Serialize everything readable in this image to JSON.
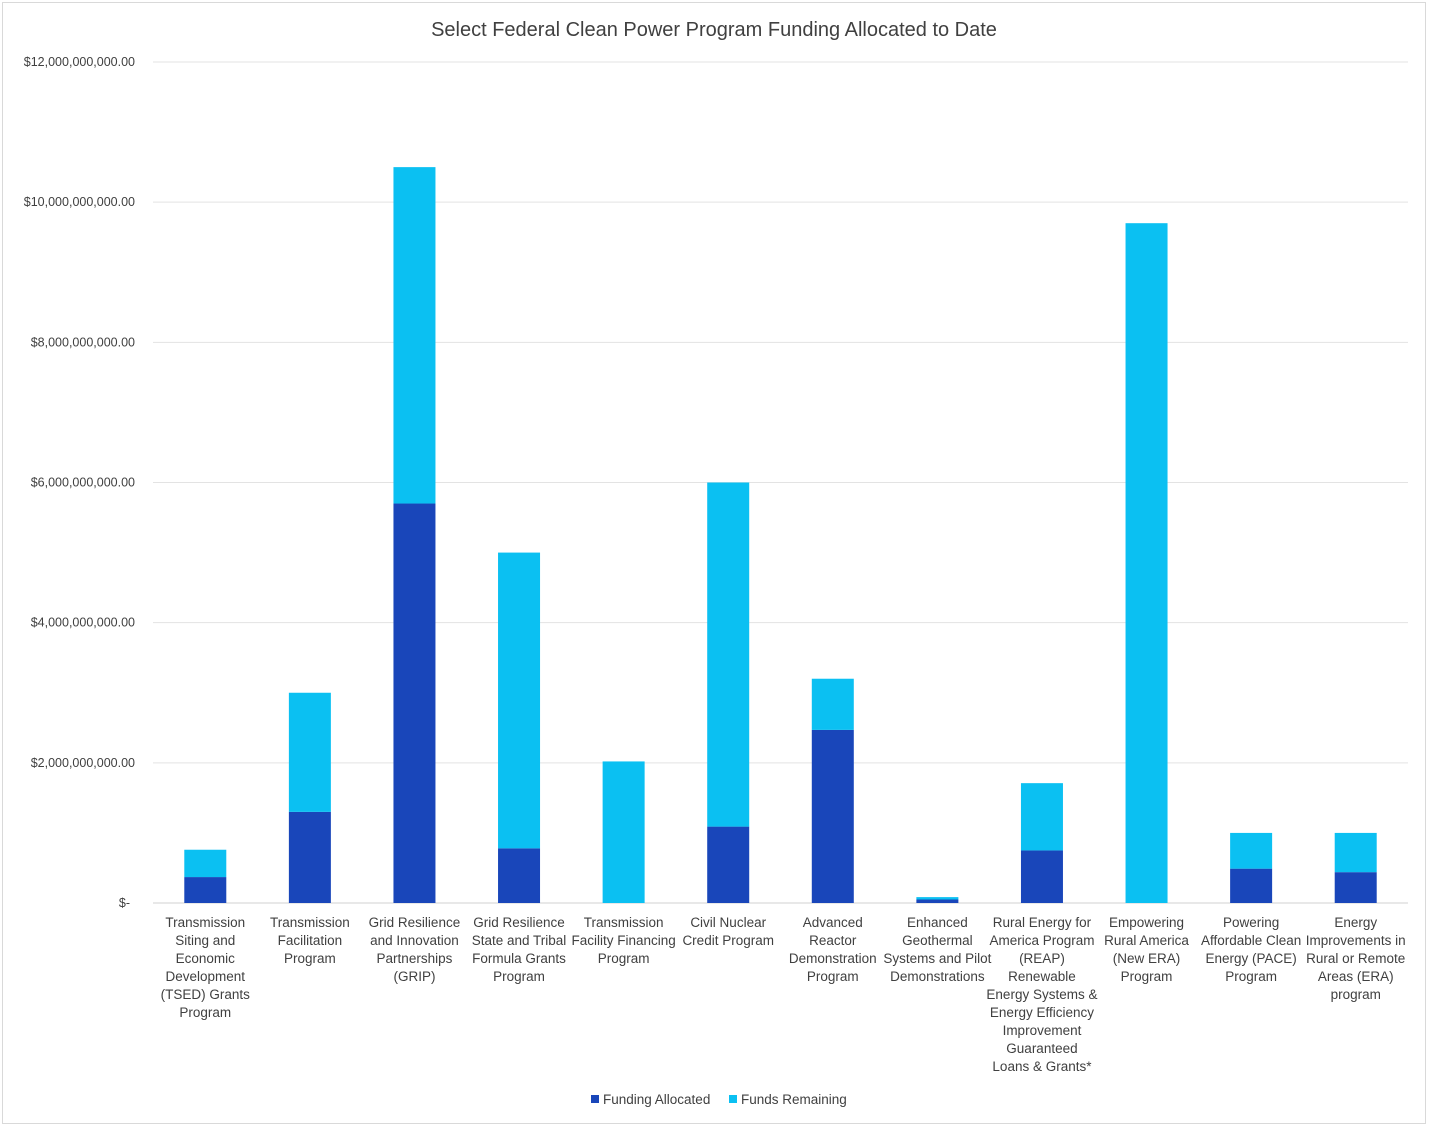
{
  "chart_data": {
    "type": "bar",
    "stacked": true,
    "title": "Select Federal Clean Power Program Funding Allocated to Date",
    "xlabel": "",
    "ylabel": "",
    "ylim": [
      0,
      12000000000
    ],
    "yticks": [
      0,
      2000000000,
      4000000000,
      6000000000,
      8000000000,
      10000000000,
      12000000000
    ],
    "ytick_labels": [
      "$-",
      "$2,000,000,000.00",
      "$4,000,000,000.00",
      "$6,000,000,000.00",
      "$8,000,000,000.00",
      "$10,000,000,000.00",
      "$12,000,000,000.00"
    ],
    "grid": true,
    "legend_position": "bottom",
    "categories": [
      [
        "Transmission",
        "Siting and",
        "Economic",
        "Development",
        "(TSED) Grants",
        "Program"
      ],
      [
        "Transmission",
        "Facilitation",
        "Program"
      ],
      [
        "Grid Resilience",
        "and Innovation",
        "Partnerships",
        "(GRIP)"
      ],
      [
        "Grid Resilience",
        "State and Tribal",
        "Formula Grants",
        "Program"
      ],
      [
        "Transmission",
        "Facility Financing",
        "Program"
      ],
      [
        "Civil Nuclear",
        "Credit Program"
      ],
      [
        "Advanced",
        "Reactor",
        "Demonstration",
        "Program"
      ],
      [
        "Enhanced",
        "Geothermal",
        "Systems and Pilot",
        "Demonstrations"
      ],
      [
        "Rural Energy for",
        "America Program",
        "(REAP)",
        "Renewable",
        "Energy Systems &",
        "Energy Efficiency",
        "Improvement",
        "Guaranteed",
        "Loans & Grants*"
      ],
      [
        "Empowering",
        "Rural America",
        "(New ERA)",
        "Program"
      ],
      [
        "Powering",
        "Affordable Clean",
        "Energy (PACE)",
        "Program"
      ],
      [
        "Energy",
        "Improvements in",
        "Rural or Remote",
        "Areas (ERA)",
        "program"
      ]
    ],
    "series": [
      {
        "name": "Funding Allocated",
        "color": "#1946BA",
        "values": [
          370000000,
          1300000000,
          5700000000,
          780000000,
          0,
          1090000000,
          2470000000,
          50000000,
          750000000,
          0,
          490000000,
          440000000
        ]
      },
      {
        "name": "Funds Remaining",
        "color": "#0BC0F2",
        "values": [
          390000000,
          1700000000,
          4800000000,
          4220000000,
          2020000000,
          4910000000,
          730000000,
          34000000,
          960000000,
          9700000000,
          510000000,
          560000000
        ]
      }
    ]
  }
}
